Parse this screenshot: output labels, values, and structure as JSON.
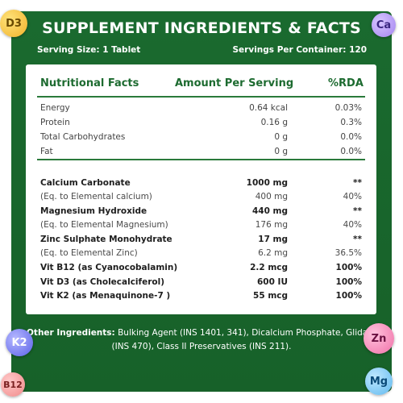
{
  "title": "SUPPLEMENT INGREDIENTS & FACTS",
  "serving_size": "Serving Size: 1 Tablet",
  "servings_per_container": "Servings Per Container: 120",
  "table": {
    "headers": [
      "Nutritional Facts",
      "Amount Per Serving",
      "%RDA"
    ],
    "rows": [
      {
        "name": "Energy",
        "amount": "0.64 kcal",
        "rda": "0.03%",
        "style": "normal"
      },
      {
        "name": "Protein",
        "amount": "0.16 g",
        "rda": "0.3%",
        "style": "normal"
      },
      {
        "name": "Total Carbohydrates",
        "amount": "0 g",
        "rda": "0.0%",
        "style": "normal"
      },
      {
        "name": "Fat",
        "amount": "0 g",
        "rda": "0.0%",
        "style": "normal"
      },
      {
        "name": "Calcium Carbonate",
        "amount": "1000 mg",
        "rda": "**",
        "style": "bold"
      },
      {
        "name": "(Eq. to Elemental calcium)",
        "amount": "400 mg",
        "rda": "40%",
        "style": "sub"
      },
      {
        "name": "Magnesium Hydroxide",
        "amount": "440 mg",
        "rda": "**",
        "style": "bold"
      },
      {
        "name": "(Eq. to Elemental Magnesium)",
        "amount": "176 mg",
        "rda": "40%",
        "style": "sub"
      },
      {
        "name": "Zinc Sulphate Monohydrate",
        "amount": "17 mg",
        "rda": "**",
        "style": "bold"
      },
      {
        "name": "(Eq. to Elemental Zinc)",
        "amount": "6.2 mg",
        "rda": "36.5%",
        "style": "sub"
      },
      {
        "name": "Vit B12 (as Cyanocobalamin)",
        "amount": "2.2 mcg",
        "rda": "100%",
        "style": "bold"
      },
      {
        "name": "Vit D3 (as Cholecalciferol)",
        "amount": "600 IU",
        "rda": "100%",
        "style": "bold"
      },
      {
        "name": "Vit K2 (as Menaquinone-7 )",
        "amount": "55 mcg",
        "rda": "100%",
        "style": "bold"
      }
    ]
  },
  "other_ingredients": {
    "label": "Other Ingredients:",
    "text": " Bulking Agent (INS 1401, 341), Dicalcium Phosphate, Glidant (INS 470), Class II Preservatives (INS 211)."
  },
  "badges": {
    "d3": "D3",
    "ca": "Ca",
    "k2": "K2",
    "zn": "Zn",
    "b12": "B12",
    "mg": "Mg"
  },
  "colors": {
    "brand_green": "#1a6a2f",
    "header_text_green": "#1d6b30"
  }
}
